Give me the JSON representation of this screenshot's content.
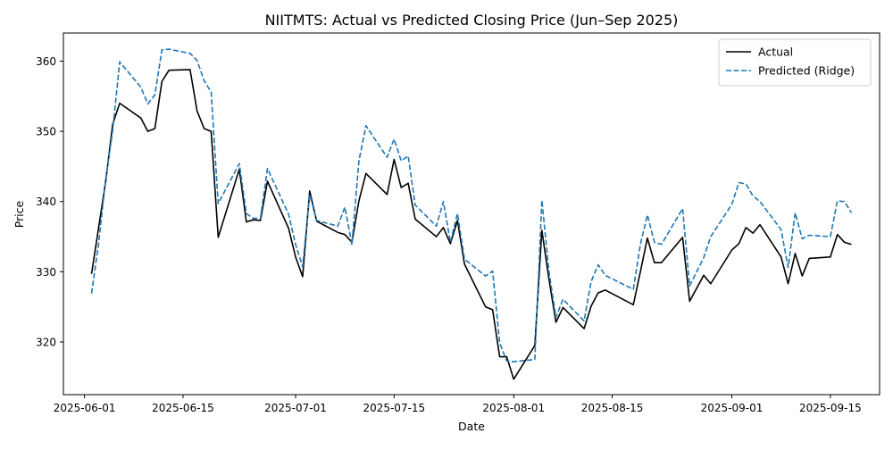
{
  "chart_data": {
    "type": "line",
    "title": "NIITMTS: Actual vs Predicted Closing Price (Jun–Sep 2025)",
    "xlabel": "Date",
    "ylabel": "Price",
    "xlim": [
      "2025-05-29",
      "2025-09-22"
    ],
    "ylim": [
      312.5,
      364.0
    ],
    "x_ticks": [
      "2025-06-01",
      "2025-06-15",
      "2025-07-01",
      "2025-07-15",
      "2025-08-01",
      "2025-08-15",
      "2025-09-01",
      "2025-09-15"
    ],
    "y_ticks": [
      320,
      330,
      340,
      350,
      360
    ],
    "grid": false,
    "legend_position": "top-right",
    "series": [
      {
        "name": "Actual",
        "style": "solid",
        "color": "#000000",
        "points": [
          [
            "2025-06-02",
            329.7
          ],
          [
            "2025-06-04",
            342.8
          ],
          [
            "2025-06-05",
            351.0
          ],
          [
            "2025-06-06",
            354.0
          ],
          [
            "2025-06-09",
            351.9
          ],
          [
            "2025-06-10",
            350.0
          ],
          [
            "2025-06-11",
            350.4
          ],
          [
            "2025-06-12",
            357.1
          ],
          [
            "2025-06-13",
            358.7
          ],
          [
            "2025-06-16",
            358.8
          ],
          [
            "2025-06-17",
            352.9
          ],
          [
            "2025-06-18",
            350.4
          ],
          [
            "2025-06-19",
            350.0
          ],
          [
            "2025-06-20",
            334.9
          ],
          [
            "2025-06-23",
            344.6
          ],
          [
            "2025-06-24",
            337.1
          ],
          [
            "2025-06-25",
            337.4
          ],
          [
            "2025-06-26",
            337.3
          ],
          [
            "2025-06-27",
            342.9
          ],
          [
            "2025-06-30",
            336.2
          ],
          [
            "2025-07-01",
            332.1
          ],
          [
            "2025-07-02",
            329.3
          ],
          [
            "2025-07-03",
            341.5
          ],
          [
            "2025-07-04",
            337.2
          ],
          [
            "2025-07-07",
            335.6
          ],
          [
            "2025-07-08",
            335.3
          ],
          [
            "2025-07-09",
            334.2
          ],
          [
            "2025-07-10",
            340.1
          ],
          [
            "2025-07-11",
            344.0
          ],
          [
            "2025-07-14",
            341.0
          ],
          [
            "2025-07-15",
            346.0
          ],
          [
            "2025-07-16",
            342.0
          ],
          [
            "2025-07-17",
            342.6
          ],
          [
            "2025-07-18",
            337.5
          ],
          [
            "2025-07-21",
            335.0
          ],
          [
            "2025-07-22",
            336.3
          ],
          [
            "2025-07-23",
            334.0
          ],
          [
            "2025-07-24",
            337.3
          ],
          [
            "2025-07-25",
            331.1
          ],
          [
            "2025-07-28",
            325.0
          ],
          [
            "2025-07-29",
            324.6
          ],
          [
            "2025-07-30",
            317.9
          ],
          [
            "2025-07-31",
            317.9
          ],
          [
            "2025-08-01",
            314.7
          ],
          [
            "2025-08-04",
            319.5
          ],
          [
            "2025-08-05",
            335.9
          ],
          [
            "2025-08-06",
            329.0
          ],
          [
            "2025-08-07",
            322.8
          ],
          [
            "2025-08-08",
            324.9
          ],
          [
            "2025-08-11",
            321.9
          ],
          [
            "2025-08-12",
            325.1
          ],
          [
            "2025-08-13",
            327.0
          ],
          [
            "2025-08-14",
            327.4
          ],
          [
            "2025-08-18",
            325.3
          ],
          [
            "2025-08-19",
            330.0
          ],
          [
            "2025-08-20",
            334.8
          ],
          [
            "2025-08-21",
            331.3
          ],
          [
            "2025-08-22",
            331.3
          ],
          [
            "2025-08-25",
            334.9
          ],
          [
            "2025-08-26",
            325.8
          ],
          [
            "2025-08-28",
            329.5
          ],
          [
            "2025-08-29",
            328.3
          ],
          [
            "2025-09-01",
            333.1
          ],
          [
            "2025-09-02",
            334.0
          ],
          [
            "2025-09-03",
            336.3
          ],
          [
            "2025-09-04",
            335.5
          ],
          [
            "2025-09-05",
            336.7
          ],
          [
            "2025-09-08",
            332.1
          ],
          [
            "2025-09-09",
            328.3
          ],
          [
            "2025-09-10",
            332.6
          ],
          [
            "2025-09-11",
            329.4
          ],
          [
            "2025-09-12",
            331.9
          ],
          [
            "2025-09-15",
            332.1
          ],
          [
            "2025-09-16",
            335.3
          ],
          [
            "2025-09-17",
            334.2
          ],
          [
            "2025-09-18",
            333.9
          ]
        ]
      },
      {
        "name": "Predicted (Ridge)",
        "style": "dashed",
        "color": "#1f77b4",
        "points": [
          [
            "2025-06-02",
            326.9
          ],
          [
            "2025-06-03",
            334.0
          ],
          [
            "2025-06-04",
            343.1
          ],
          [
            "2025-06-05",
            350.1
          ],
          [
            "2025-06-06",
            359.9
          ],
          [
            "2025-06-09",
            356.3
          ],
          [
            "2025-06-10",
            353.9
          ],
          [
            "2025-06-11",
            355.2
          ],
          [
            "2025-06-12",
            361.6
          ],
          [
            "2025-06-13",
            361.7
          ],
          [
            "2025-06-16",
            361.1
          ],
          [
            "2025-06-17",
            360.1
          ],
          [
            "2025-06-18",
            357.2
          ],
          [
            "2025-06-19",
            355.6
          ],
          [
            "2025-06-20",
            339.7
          ],
          [
            "2025-06-23",
            345.4
          ],
          [
            "2025-06-24",
            338.3
          ],
          [
            "2025-06-25",
            337.6
          ],
          [
            "2025-06-26",
            337.6
          ],
          [
            "2025-06-27",
            344.7
          ],
          [
            "2025-06-30",
            338.2
          ],
          [
            "2025-07-01",
            333.9
          ],
          [
            "2025-07-02",
            330.7
          ],
          [
            "2025-07-03",
            341.0
          ],
          [
            "2025-07-04",
            337.3
          ],
          [
            "2025-07-07",
            336.5
          ],
          [
            "2025-07-08",
            339.2
          ],
          [
            "2025-07-09",
            333.9
          ],
          [
            "2025-07-10",
            345.8
          ],
          [
            "2025-07-11",
            350.8
          ],
          [
            "2025-07-14",
            346.3
          ],
          [
            "2025-07-15",
            348.9
          ],
          [
            "2025-07-16",
            345.8
          ],
          [
            "2025-07-17",
            346.5
          ],
          [
            "2025-07-18",
            339.5
          ],
          [
            "2025-07-21",
            336.5
          ],
          [
            "2025-07-22",
            340.0
          ],
          [
            "2025-07-23",
            334.2
          ],
          [
            "2025-07-24",
            338.3
          ],
          [
            "2025-07-25",
            331.8
          ],
          [
            "2025-07-28",
            329.4
          ],
          [
            "2025-07-29",
            330.1
          ],
          [
            "2025-07-30",
            319.9
          ],
          [
            "2025-07-31",
            317.3
          ],
          [
            "2025-08-01",
            317.2
          ],
          [
            "2025-08-04",
            317.5
          ],
          [
            "2025-08-05",
            340.2
          ],
          [
            "2025-08-06",
            330.1
          ],
          [
            "2025-08-07",
            323.5
          ],
          [
            "2025-08-08",
            326.1
          ],
          [
            "2025-08-11",
            323.0
          ],
          [
            "2025-08-12",
            328.6
          ],
          [
            "2025-08-13",
            331.0
          ],
          [
            "2025-08-14",
            329.5
          ],
          [
            "2025-08-18",
            327.5
          ],
          [
            "2025-08-19",
            333.9
          ],
          [
            "2025-08-20",
            338.1
          ],
          [
            "2025-08-21",
            334.2
          ],
          [
            "2025-08-22",
            333.9
          ],
          [
            "2025-08-25",
            339.0
          ],
          [
            "2025-08-26",
            328.0
          ],
          [
            "2025-08-28",
            332.0
          ],
          [
            "2025-08-29",
            335.0
          ],
          [
            "2025-09-01",
            339.6
          ],
          [
            "2025-09-02",
            342.7
          ],
          [
            "2025-09-03",
            342.5
          ],
          [
            "2025-09-04",
            340.8
          ],
          [
            "2025-09-05",
            340.0
          ],
          [
            "2025-09-08",
            336.0
          ],
          [
            "2025-09-09",
            330.6
          ],
          [
            "2025-09-10",
            338.4
          ],
          [
            "2025-09-11",
            334.7
          ],
          [
            "2025-09-12",
            335.2
          ],
          [
            "2025-09-15",
            335.0
          ],
          [
            "2025-09-16",
            340.1
          ],
          [
            "2025-09-17",
            340.0
          ],
          [
            "2025-09-18",
            338.4
          ]
        ]
      }
    ]
  }
}
